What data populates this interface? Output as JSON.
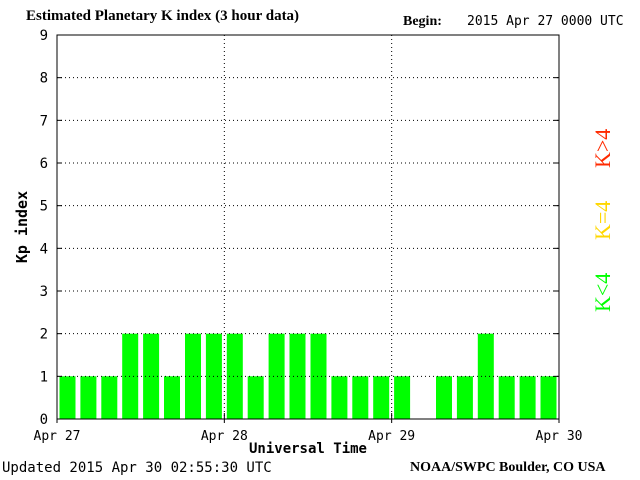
{
  "header": {
    "title": "Estimated Planetary K index (3 hour data)",
    "begin_label": "Begin:",
    "begin_value": "2015 Apr 27 0000 UTC"
  },
  "footer": {
    "updated": "Updated 2015 Apr 30 02:55:30 UTC",
    "source": "NOAA/SWPC Boulder, CO USA"
  },
  "legend": {
    "storm": "K>4",
    "active": "K=4",
    "quiet": "K<4"
  },
  "colors": {
    "quiet": "#00ff00",
    "active": "#ffd700",
    "storm": "#ff2a00"
  },
  "chart_data": {
    "type": "bar",
    "title": "Estimated Planetary K index (3 hour data)",
    "xlabel": "Universal Time",
    "ylabel": "Kp index",
    "ylim": [
      0,
      9
    ],
    "yticks": [
      0,
      1,
      2,
      3,
      4,
      5,
      6,
      7,
      8,
      9
    ],
    "xtick_labels": [
      "Apr 27",
      "Apr 28",
      "Apr 29",
      "Apr 30"
    ],
    "grid": true,
    "values": [
      1,
      1,
      1,
      2,
      2,
      1,
      2,
      2,
      2,
      1,
      2,
      2,
      2,
      1,
      1,
      1,
      1,
      null,
      1,
      1,
      2,
      1,
      1,
      1
    ]
  }
}
